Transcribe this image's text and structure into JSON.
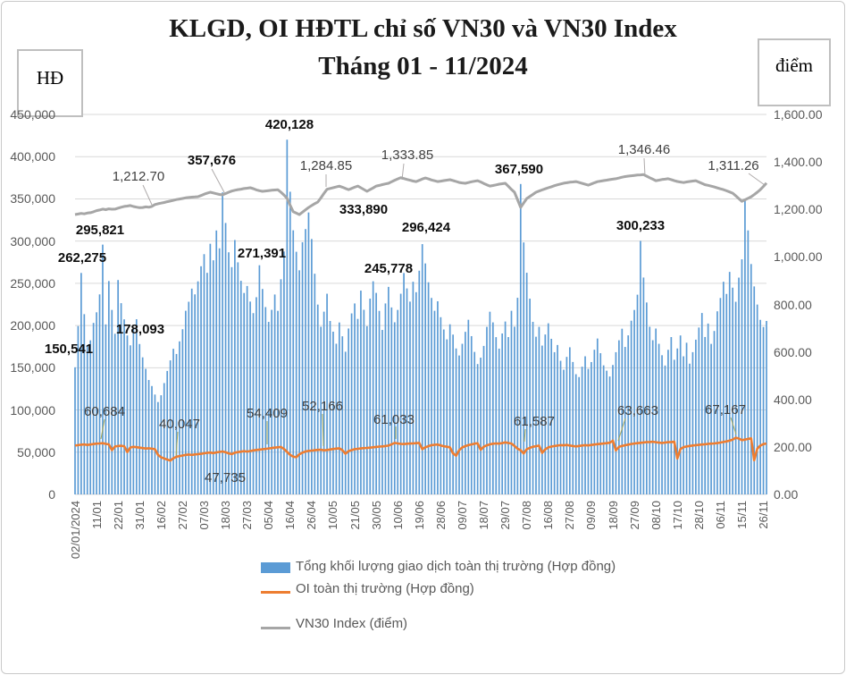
{
  "title": {
    "line1": "KLGD, OI HĐTL chỉ số VN30 và VN30 Index",
    "line2": "Tháng 01 - 11/2024"
  },
  "axis_units": {
    "left": "HĐ",
    "right": "điểm"
  },
  "y_axis_left": {
    "ticks": [
      "450,000",
      "400,000",
      "350,000",
      "300,000",
      "250,000",
      "200,000",
      "150,000",
      "100,000",
      "50,000",
      "0"
    ],
    "min": 0,
    "max": 450000
  },
  "y_axis_right": {
    "ticks": [
      "1,600.00",
      "1,400.00",
      "1,200.00",
      "1,000.00",
      "800.00",
      "600.00",
      "400.00",
      "200.00",
      "0.00"
    ],
    "min": 0,
    "max": 1600
  },
  "legend": [
    {
      "label": "Tổng khối lượng giao dịch toàn thị trường (Hợp đồng)",
      "type": "bar",
      "color": "#5B9BD5"
    },
    {
      "label": "OI toàn thị trường (Hợp đồng)",
      "type": "line",
      "color": "#ED7D31"
    },
    {
      "label": "VN30 Index (điểm)",
      "type": "line",
      "color": "#A6A6A6"
    }
  ],
  "chart_data": {
    "type": "combo",
    "x_tick_labels": [
      "02/01/2024",
      "11/01",
      "22/01",
      "31/01",
      "16/02",
      "27/02",
      "07/03",
      "18/03",
      "27/03",
      "05/04",
      "16/04",
      "26/04",
      "10/05",
      "21/05",
      "30/05",
      "10/06",
      "19/06",
      "28/06",
      "09/07",
      "18/07",
      "29/07",
      "07/08",
      "16/08",
      "27/08",
      "09/09",
      "18/09",
      "27/09",
      "08/10",
      "17/10",
      "28/10",
      "06/11",
      "15/11",
      "26/11"
    ],
    "tick_every": 7,
    "n_points": 226,
    "axes": {
      "left_max": 450000,
      "right_max": 1600,
      "grid": true
    },
    "series": [
      {
        "name": "Tổng khối lượng giao dịch toàn thị trường (Hợp đồng)",
        "type": "bar",
        "axis": "left",
        "color": "#5B9BD5",
        "values": [
          150541,
          199345,
          262275,
          213480,
          176892,
          182456,
          203117,
          215674,
          236892,
          295821,
          201345,
          252688,
          218473,
          190238,
          253912,
          226480,
          207345,
          188236,
          176549,
          195873,
          207461,
          178093,
          162340,
          148721,
          135489,
          128356,
          118247,
          109384,
          117426,
          131852,
          146208,
          158734,
          172461,
          166329,
          181247,
          195638,
          217482,
          228156,
          243725,
          236914,
          252348,
          270186,
          284529,
          262417,
          296835,
          277261,
          312584,
          291437,
          357676,
          321458,
          286734,
          269148,
          301276,
          274835,
          252961,
          238547,
          246819,
          228357,
          214682,
          233548,
          271391,
          243276,
          221859,
          204317,
          218569,
          236748,
          217382,
          254816,
          287654,
          420128,
          358462,
          312784,
          287356,
          265419,
          298672,
          314238,
          333890,
          302457,
          261348,
          224816,
          198573,
          216428,
          237651,
          205384,
          192746,
          178435,
          203619,
          187254,
          168973,
          196482,
          214357,
          226148,
          207835,
          241369,
          218647,
          199258,
          231874,
          252416,
          238659,
          217342,
          194786,
          226153,
          245778,
          221437,
          203861,
          218473,
          237645,
          262184,
          243957,
          228316,
          251843,
          239478,
          264935,
          296424,
          273548,
          251236,
          232684,
          217459,
          228731,
          209846,
          195327,
          183648,
          201473,
          189256,
          172843,
          164529,
          178364,
          192547,
          206813,
          187429,
          168751,
          154382,
          161948,
          175863,
          198427,
          216358,
          203741,
          186259,
          172634,
          190582,
          204738,
          186352,
          217469,
          198624,
          232857,
          367590,
          298416,
          262534,
          231847,
          204368,
          186752,
          198431,
          176248,
          189367,
          202648,
          184276,
          168435,
          176948,
          158234,
          147652,
          162873,
          174258,
          156834,
          142367,
          138956,
          151248,
          163572,
          148639,
          156742,
          171358,
          184623,
          167249,
          152836,
          146527,
          139648,
          153271,
          168435,
          182547,
          196238,
          174652,
          188364,
          205719,
          218436,
          236528,
          300233,
          256847,
          227319,
          198546,
          182637,
          196428,
          178352,
          164839,
          152647,
          171258,
          186342,
          159478,
          172846,
          188253,
          163547,
          179628,
          154836,
          168472,
          183259,
          197643,
          214852,
          186437,
          202358,
          178264,
          193547,
          216838,
          232647,
          251836,
          237428,
          263519,
          244857,
          228136,
          256743,
          278452,
          348267,
          312648,
          272835,
          246319,
          224857,
          206734,
          198263,
          205418
        ]
      },
      {
        "name": "OI toàn thị trường (Hợp đồng)",
        "type": "line",
        "axis": "left",
        "color": "#ED7D31",
        "values": [
          57800,
          58300,
          58900,
          59200,
          58600,
          59100,
          59600,
          60100,
          60400,
          60684,
          59800,
          59300,
          52400,
          56800,
          57300,
          57600,
          57100,
          50200,
          55600,
          56300,
          55900,
          55400,
          54800,
          54300,
          54600,
          54100,
          53600,
          46800,
          43900,
          42600,
          41300,
          40047,
          42800,
          44600,
          45400,
          46100,
          46800,
          47200,
          46700,
          47300,
          47600,
          48100,
          48700,
          49200,
          49600,
          48900,
          49800,
          50300,
          50800,
          49900,
          48600,
          47735,
          49400,
          50100,
          50600,
          51200,
          50700,
          51400,
          52100,
          52600,
          53100,
          53500,
          53900,
          54409,
          54900,
          55400,
          55800,
          56200,
          53800,
          50300,
          46800,
          44700,
          44100,
          47500,
          49500,
          50800,
          51600,
          51900,
          52300,
          52700,
          52900,
          52166,
          52600,
          53200,
          53800,
          54200,
          54600,
          52300,
          48200,
          51400,
          52400,
          53600,
          54000,
          54400,
          54800,
          55100,
          55400,
          55800,
          56200,
          56600,
          56900,
          57300,
          57800,
          59400,
          61033,
          60400,
          59800,
          59600,
          60000,
          60200,
          60400,
          60700,
          61000,
          53600,
          55800,
          57200,
          58300,
          58800,
          59100,
          57900,
          57100,
          56400,
          55700,
          48600,
          45800,
          52300,
          55600,
          57200,
          58400,
          59200,
          60100,
          60600,
          52800,
          56400,
          58100,
          59300,
          60000,
          60400,
          60100,
          60800,
          61587,
          60900,
          60200,
          57400,
          54100,
          52300,
          48500,
          53600,
          55200,
          56400,
          57100,
          57800,
          49200,
          53400,
          55700,
          56600,
          57300,
          57800,
          58300,
          58100,
          58600,
          57900,
          57300,
          56800,
          57400,
          57900,
          58300,
          58000,
          58600,
          59100,
          59500,
          59900,
          60300,
          60700,
          61200,
          63663,
          52100,
          56300,
          57400,
          58200,
          59000,
          59700,
          60200,
          60700,
          61100,
          61500,
          61900,
          62100,
          62400,
          61800,
          61300,
          60900,
          61400,
          61800,
          62100,
          62400,
          42500,
          53800,
          55900,
          56800,
          57400,
          57900,
          58300,
          58700,
          59100,
          59400,
          59800,
          60100,
          60400,
          60800,
          61400,
          62100,
          62800,
          63600,
          64900,
          67167,
          66200,
          64300,
          64900,
          65800,
          66400,
          40500,
          54200,
          57800,
          59600,
          60200
        ]
      },
      {
        "name": "VN30 Index (điểm)",
        "type": "line",
        "axis": "right",
        "color": "#A6A6A6",
        "values": [
          1178.2,
          1180.5,
          1183.1,
          1181.4,
          1184.6,
          1186.3,
          1190.2,
          1194.8,
          1197.5,
          1201.4,
          1199.2,
          1202.6,
          1200.8,
          1201.3,
          1205.6,
          1209.4,
          1212.8,
          1214.2,
          1216.5,
          1212.3,
          1209.7,
          1207.4,
          1208.2,
          1210.6,
          1209.3,
          1212.7,
          1220.4,
          1223.8,
          1226.5,
          1229.2,
          1232.6,
          1235.3,
          1238.1,
          1241.5,
          1243.8,
          1246.2,
          1248.6,
          1250.3,
          1251.7,
          1252.4,
          1253.6,
          1258.4,
          1264.2,
          1268.5,
          1272.3,
          1269.4,
          1266.1,
          1263.2,
          1261.4,
          1266.8,
          1272.5,
          1277.3,
          1280.6,
          1283.2,
          1285.4,
          1287.8,
          1289.5,
          1291.3,
          1287.6,
          1282.4,
          1278.9,
          1276.2,
          1277.8,
          1279.4,
          1280.6,
          1281.9,
          1283.1,
          1272.4,
          1260.8,
          1246.3,
          1217.6,
          1190.4,
          1184.2,
          1178.3,
          1188.6,
          1198.4,
          1208.2,
          1216.4,
          1224.1,
          1231.5,
          1248.3,
          1267.2,
          1284.85,
          1288.3,
          1291.6,
          1294.8,
          1298.2,
          1293.4,
          1288.1,
          1283.4,
          1288.2,
          1293.5,
          1298.3,
          1291.2,
          1283.6,
          1276.4,
          1283.2,
          1290.6,
          1298.4,
          1301.2,
          1304.6,
          1307.3,
          1310.2,
          1316.4,
          1322.8,
          1328.5,
          1333.85,
          1330.2,
          1326.4,
          1322.8,
          1319.6,
          1317.2,
          1322.4,
          1328.1,
          1332.3,
          1328.6,
          1324.2,
          1320.5,
          1317.4,
          1319.2,
          1321.6,
          1323.4,
          1325.2,
          1321.8,
          1317.6,
          1313.4,
          1311.8,
          1310.3,
          1313.2,
          1316.4,
          1318.8,
          1321.2,
          1315.6,
          1309.4,
          1303.2,
          1298.3,
          1300.6,
          1303.4,
          1306.2,
          1308.4,
          1310.2,
          1297.6,
          1284.3,
          1272.4,
          1240.6,
          1208.3,
          1227.4,
          1246.2,
          1254.8,
          1263.4,
          1272.3,
          1277.2,
          1282.4,
          1286.8,
          1291.2,
          1295.4,
          1299.8,
          1303.6,
          1307.2,
          1310.4,
          1312.2,
          1314.6,
          1315.8,
          1317.2,
          1313.4,
          1309.6,
          1305.8,
          1302.3,
          1307.2,
          1312.4,
          1316.8,
          1319.2,
          1321.4,
          1323.2,
          1325.6,
          1327.4,
          1329.2,
          1332.4,
          1335.6,
          1338.2,
          1340.3,
          1341.8,
          1343.2,
          1344.6,
          1345.4,
          1346.46,
          1340.2,
          1333.6,
          1327.4,
          1321.2,
          1323.4,
          1325.8,
          1327.6,
          1329.3,
          1325.4,
          1321.2,
          1317.6,
          1315.4,
          1313.2,
          1315.6,
          1317.8,
          1319.4,
          1321.2,
          1315.4,
          1309.6,
          1304.2,
          1301.4,
          1298.2,
          1294.6,
          1290.4,
          1286.8,
          1283.2,
          1278.4,
          1273.6,
          1268.3,
          1257.4,
          1245.6,
          1234.2,
          1240.6,
          1246.8,
          1253.2,
          1262.4,
          1272.6,
          1283.4,
          1296.8,
          1311.26
        ]
      }
    ],
    "annotations": {
      "volume": [
        {
          "t": "150,541",
          "x": 77,
          "y": 391
        },
        {
          "t": "262,275",
          "x": 92,
          "y": 289
        },
        {
          "t": "295,821",
          "x": 112,
          "y": 258
        },
        {
          "t": "178,093",
          "x": 157,
          "y": 369
        },
        {
          "t": "357,676",
          "x": 237,
          "y": 180,
          "leader": [
            237,
            189,
            252,
            217
          ]
        },
        {
          "t": "271,391",
          "x": 293,
          "y": 284
        },
        {
          "t": "420,128",
          "x": 324,
          "y": 140
        },
        {
          "t": "333,890",
          "x": 407,
          "y": 235
        },
        {
          "t": "245,778",
          "x": 435,
          "y": 301
        },
        {
          "t": "296,424",
          "x": 477,
          "y": 255
        },
        {
          "t": "367,590",
          "x": 581,
          "y": 190
        },
        {
          "t": "300,233",
          "x": 717,
          "y": 253
        }
      ],
      "oi": [
        {
          "t": "60,684",
          "x": 117,
          "y": 461,
          "leader": [
            117,
            469,
            113,
            491
          ]
        },
        {
          "t": "40,047",
          "x": 201,
          "y": 475,
          "leader": [
            199,
            483,
            197,
            511
          ]
        },
        {
          "t": "47,735",
          "x": 252,
          "y": 535
        },
        {
          "t": "54,409",
          "x": 299,
          "y": 463,
          "leader": [
            299,
            471,
            299,
            497
          ]
        },
        {
          "t": "52,166",
          "x": 361,
          "y": 455,
          "leader": [
            361,
            463,
            362,
            499
          ]
        },
        {
          "t": "61,033",
          "x": 441,
          "y": 470,
          "leader": [
            443,
            477,
            443,
            491
          ]
        },
        {
          "t": "61,587",
          "x": 598,
          "y": 472,
          "leader": [
            588,
            480,
            587,
            494
          ]
        },
        {
          "t": "63,663",
          "x": 714,
          "y": 460,
          "leader": [
            700,
            468,
            692,
            493
          ]
        },
        {
          "t": "67,167",
          "x": 812,
          "y": 459,
          "leader": [
            818,
            467,
            824,
            486
          ]
        }
      ],
      "vn30": [
        {
          "t": "1,212.70",
          "x": 155,
          "y": 198,
          "leader": [
            160,
            207,
            170,
            229
          ]
        },
        {
          "t": "1,284.85",
          "x": 365,
          "y": 186,
          "leader": [
            365,
            195,
            365,
            209
          ]
        },
        {
          "t": "1,333.85",
          "x": 456,
          "y": 174,
          "leader": [
            452,
            183,
            450,
            201
          ]
        },
        {
          "t": "1,346.46",
          "x": 721,
          "y": 168,
          "leader": [
            721,
            177,
            722,
            197
          ]
        },
        {
          "t": "1,311.26",
          "x": 821,
          "y": 186,
          "leader": [
            838,
            194,
            856,
            207
          ]
        }
      ]
    }
  },
  "colors": {
    "bar": "#5B9BD5",
    "oi_line": "#ED7D31",
    "vn30_line": "#A6A6A6",
    "grid": "#D9D9D9",
    "axis_text": "#595959",
    "leader_gray": "#AFABAB",
    "leader_olive": "#A9A957"
  }
}
